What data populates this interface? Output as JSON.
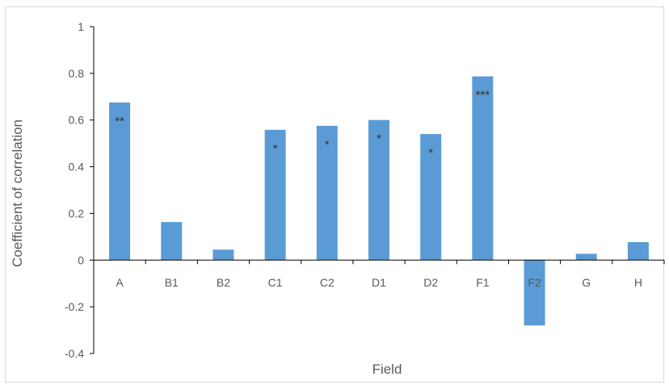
{
  "chart_data": {
    "type": "bar",
    "title": "",
    "xlabel": "Field",
    "ylabel": "Coefficient of correlation",
    "categories": [
      "A",
      "B1",
      "B2",
      "C1",
      "C2",
      "D1",
      "D2",
      "F1",
      "F2",
      "G",
      "H"
    ],
    "values": [
      0.675,
      0.163,
      0.045,
      0.558,
      0.575,
      0.6,
      0.54,
      0.787,
      -0.28,
      0.027,
      0.077
    ],
    "annotations": [
      "**",
      "",
      "",
      "*",
      "*",
      "*",
      "*",
      "***",
      "",
      "",
      ""
    ],
    "ylim": [
      -0.4,
      1
    ],
    "yticks": [
      "-0.4",
      "-0.2",
      "0",
      "0.2",
      "0.4",
      "0.6",
      "0.8",
      "1"
    ],
    "ytick_values": [
      -0.4,
      -0.2,
      0,
      0.2,
      0.4,
      0.6,
      0.8,
      1
    ],
    "grid": false,
    "legend": "none",
    "bar_color": "#5b9bd5",
    "axis_color": "#000000"
  }
}
